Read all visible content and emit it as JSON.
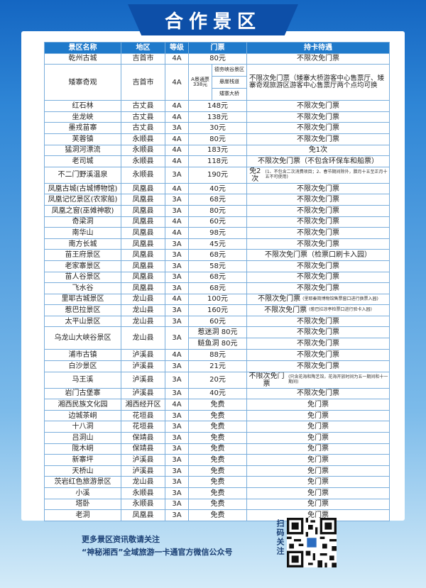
{
  "title": "合作景区",
  "table": {
    "header": [
      "景区名称",
      "地区",
      "等级",
      "门票",
      "持卡待遇"
    ],
    "rows": [
      {
        "name": "乾州古城",
        "region": "吉首市",
        "level": "4A",
        "ticket": "80元",
        "benefit": "不限次免门票"
      },
      {
        "name": "矮寨奇观",
        "region": "吉首市",
        "level": "4A",
        "ticket": {
          "pass": "A景通票338元",
          "sites": [
            "德夯峡谷景区",
            "悬崖栈道",
            "矮寨大桥"
          ]
        },
        "benefit": "不限次免门票（矮寨大桥游客中心售票厅、矮寨奇观旅游区游客中心售票厅两个点均可换"
      },
      {
        "name": "红石林",
        "region": "古丈县",
        "level": "4A",
        "ticket": "148元",
        "benefit": "不限次免门票"
      },
      {
        "name": "坐龙峡",
        "region": "古丈县",
        "level": "4A",
        "ticket": "138元",
        "benefit": "不限次免门票"
      },
      {
        "name": "墨戎苗寨",
        "region": "古丈县",
        "level": "3A",
        "ticket": "30元",
        "benefit": "不限次免门票"
      },
      {
        "name": "芙蓉镇",
        "region": "永顺县",
        "level": "4A",
        "ticket": "80元",
        "benefit": "不限次免门票"
      },
      {
        "name": "猛洞河漂流",
        "region": "永顺县",
        "level": "4A",
        "ticket": "183元",
        "benefit": "免1次"
      },
      {
        "name": "老司城",
        "region": "永顺县",
        "level": "4A",
        "ticket": "118元",
        "benefit": "不限次免门票（不包含环保车和船票）"
      },
      {
        "name": "不二门野溪温泉",
        "region": "永顺县",
        "level": "3A",
        "ticket": "190元",
        "benefit": "免2次",
        "note": "(1、不包含二次消费项目；2、春节期间除外，腊月十五至正月十五不可使用)"
      },
      {
        "name": "凤凰古城(古城博物馆)",
        "region": "凤凰县",
        "level": "4A",
        "ticket": "40元",
        "benefit": "不限次免门票"
      },
      {
        "name": "凤凰记忆景区(农家船)",
        "region": "凤凰县",
        "level": "3A",
        "ticket": "68元",
        "benefit": "不限次免门票"
      },
      {
        "name": "凤凰之窗(巫傩神歌)",
        "region": "凤凰县",
        "level": "3A",
        "ticket": "80元",
        "benefit": "不限次免门票"
      },
      {
        "name": "奇梁洞",
        "region": "凤凰县",
        "level": "4A",
        "ticket": "60元",
        "benefit": "不限次免门票"
      },
      {
        "name": "南华山",
        "region": "凤凰县",
        "level": "4A",
        "ticket": "98元",
        "benefit": "不限次免门票"
      },
      {
        "name": "南方长城",
        "region": "凤凰县",
        "level": "3A",
        "ticket": "45元",
        "benefit": "不限次免门票"
      },
      {
        "name": "苗王府景区",
        "region": "凤凰县",
        "level": "3A",
        "ticket": "68元",
        "benefit": "不限次免门票（检票口刷卡入园）"
      },
      {
        "name": "老家寨景区",
        "region": "凤凰县",
        "level": "3A",
        "ticket": "58元",
        "benefit": "不限次免门票"
      },
      {
        "name": "苗人谷景区",
        "region": "凤凰县",
        "level": "3A",
        "ticket": "68元",
        "benefit": "不限次免门票"
      },
      {
        "name": "飞水谷",
        "region": "凤凰县",
        "level": "3A",
        "ticket": "68元",
        "benefit": "不限次免门票"
      },
      {
        "name": "里耶古城景区",
        "region": "龙山县",
        "level": "4A",
        "ticket": "100元",
        "benefit": "不限次免门票",
        "note": "(里耶秦简博物馆售票窗口进行换票入园)"
      },
      {
        "name": "惹巴拉景区",
        "region": "龙山县",
        "level": "3A",
        "ticket": "160元",
        "benefit": "不限次免门票",
        "note": "(惹巴拉凉亭检票口进行验卡入园)"
      },
      {
        "name": "太平山景区",
        "region": "龙山县",
        "level": "3A",
        "ticket": "60元",
        "benefit": "不限次免门票"
      },
      {
        "name": "乌龙山大峡谷景区",
        "region": "龙山县",
        "level": "3A",
        "ticket": [
          "惹迷洞 80元",
          "鲢鱼洞 80元"
        ],
        "benefit": [
          "不限次免门票",
          "不限次免门票"
        ]
      },
      {
        "name": "浦市古镇",
        "region": "泸溪县",
        "level": "4A",
        "ticket": "88元",
        "benefit": "不限次免门票"
      },
      {
        "name": "白沙景区",
        "region": "泸溪县",
        "level": "3A",
        "ticket": "21元",
        "benefit": "不限次免门票"
      },
      {
        "name": "马王溪",
        "region": "泸溪县",
        "level": "3A",
        "ticket": "20元",
        "benefit": "不限次免门票",
        "note": "(只含花海和陶艺馆，花海开放时间为五一期间和十一期间)"
      },
      {
        "name": "岩门古堡寨",
        "region": "泸溪县",
        "level": "3A",
        "ticket": "40元",
        "benefit": "不限次免门票"
      },
      {
        "name": "湘西民族文化园",
        "region": "湘西经开区",
        "level": "4A",
        "ticket": "免费",
        "benefit": "免门票"
      },
      {
        "name": "边城茶峒",
        "region": "花垣县",
        "level": "3A",
        "ticket": "免费",
        "benefit": "免门票"
      },
      {
        "name": "十八洞",
        "region": "花垣县",
        "level": "3A",
        "ticket": "免费",
        "benefit": "免门票"
      },
      {
        "name": "吕洞山",
        "region": "保靖县",
        "level": "3A",
        "ticket": "免费",
        "benefit": "免门票"
      },
      {
        "name": "陇木峒",
        "region": "保靖县",
        "level": "3A",
        "ticket": "免费",
        "benefit": "免门票"
      },
      {
        "name": "新寨坪",
        "region": "泸溪县",
        "level": "3A",
        "ticket": "免费",
        "benefit": "免门票"
      },
      {
        "name": "天桥山",
        "region": "泸溪县",
        "level": "3A",
        "ticket": "免费",
        "benefit": "免门票"
      },
      {
        "name": "茨岩红色旅游景区",
        "region": "龙山县",
        "level": "3A",
        "ticket": "免费",
        "benefit": "免门票"
      },
      {
        "name": "小溪",
        "region": "永顺县",
        "level": "3A",
        "ticket": "免费",
        "benefit": "免门票"
      },
      {
        "name": "塔卧",
        "region": "永顺县",
        "level": "3A",
        "ticket": "免费",
        "benefit": "免门票"
      },
      {
        "name": "老洞",
        "region": "凤凰县",
        "level": "3A",
        "ticket": "免费",
        "benefit": "免门票"
      }
    ]
  },
  "footer": {
    "lines": [
      "更多景区资讯敬请关注",
      "“神秘湘西”全域旅游一卡通官方微信公众号"
    ],
    "qr_caption": "扫码关注"
  }
}
